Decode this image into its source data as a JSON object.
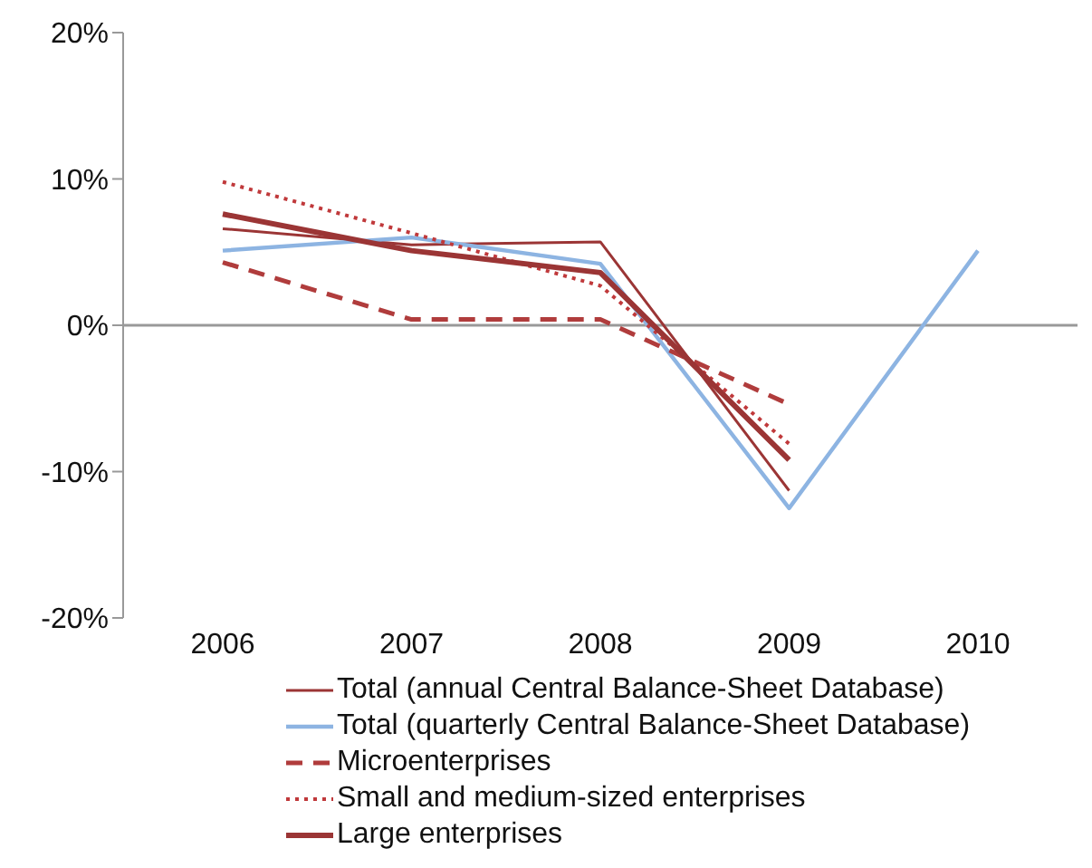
{
  "chart_data": {
    "type": "line",
    "categories": [
      "2006",
      "2007",
      "2008",
      "2009",
      "2010"
    ],
    "ylim": [
      -20,
      20
    ],
    "yticks": [
      {
        "value": -20,
        "label": "-20%"
      },
      {
        "value": -10,
        "label": "-10%"
      },
      {
        "value": 0,
        "label": "0%"
      },
      {
        "value": 10,
        "label": "10%"
      },
      {
        "value": 20,
        "label": "20%"
      }
    ],
    "ref_lines": [
      {
        "axis": "y",
        "value": 0,
        "color": "#999999"
      }
    ],
    "legend": "bottom",
    "marker": "none",
    "series": [
      {
        "name": "Total (annual Central Balance-Sheet Database)",
        "color": "#9b3535",
        "line_style": "solid",
        "values": [
          6.6,
          5.5,
          5.7,
          -11.3,
          null
        ]
      },
      {
        "name": "Total (quarterly Central Balance-Sheet Database)",
        "color": "#8db4e2",
        "line_style": "solid",
        "values": [
          5.1,
          6.0,
          4.2,
          -12.5,
          5.1
        ]
      },
      {
        "name": "Microenterprises",
        "color": "#b03c3c",
        "line_style": "dashed",
        "values": [
          4.3,
          0.4,
          0.4,
          -5.4,
          null
        ]
      },
      {
        "name": "Small and medium-sized enterprises",
        "color": "#c0393b",
        "line_style": "dotted",
        "values": [
          9.8,
          6.3,
          2.7,
          -8.1,
          null
        ]
      },
      {
        "name": "Large enterprises",
        "color": "#9b3535",
        "line_style": "solid",
        "values": [
          7.6,
          5.1,
          3.6,
          -9.2,
          null
        ]
      }
    ]
  }
}
